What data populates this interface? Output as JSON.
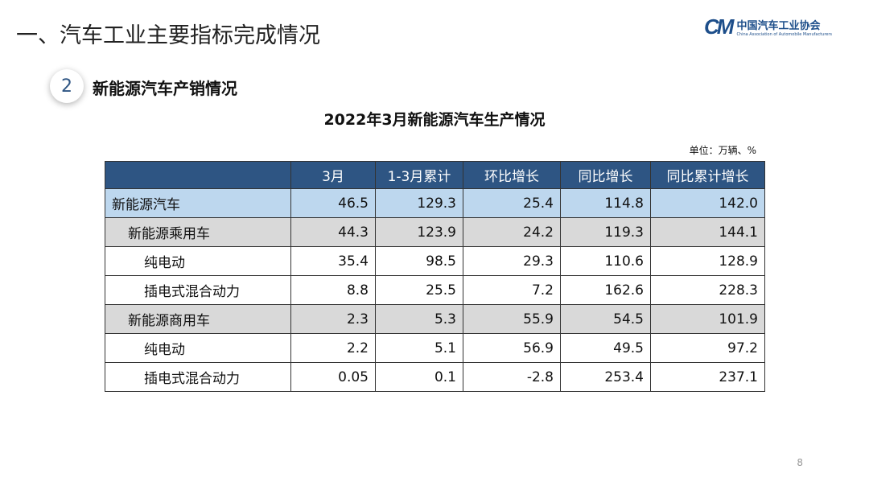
{
  "title": "一、汽车工业主要指标完成情况",
  "logo": {
    "mark": "CM",
    "cn": "中国汽车工业协会",
    "en": "China Association of Automobile Manufacturers"
  },
  "section": {
    "number": "2",
    "title": "新能源汽车产销情况"
  },
  "table_title": "2022年3月新能源汽车生产情况",
  "unit": "单位：万辆、%",
  "headers": [
    "",
    "3月",
    "1-3月累计",
    "环比增长",
    "同比增长",
    "同比累计增长"
  ],
  "rows": [
    {
      "name": "新能源汽车",
      "level": 0,
      "values": [
        "46.5",
        "129.3",
        "25.4",
        "114.8",
        "142.0"
      ]
    },
    {
      "name": "新能源乘用车",
      "level": 1,
      "values": [
        "44.3",
        "123.9",
        "24.2",
        "119.3",
        "144.1"
      ]
    },
    {
      "name": "纯电动",
      "level": 2,
      "values": [
        "35.4",
        "98.5",
        "29.3",
        "110.6",
        "128.9"
      ]
    },
    {
      "name": "插电式混合动力",
      "level": 2,
      "values": [
        "8.8",
        "25.5",
        "7.2",
        "162.6",
        "228.3"
      ]
    },
    {
      "name": "新能源商用车",
      "level": 1,
      "values": [
        "2.3",
        "5.3",
        "55.9",
        "54.5",
        "101.9"
      ]
    },
    {
      "name": "纯电动",
      "level": 2,
      "values": [
        "2.2",
        "5.1",
        "56.9",
        "49.5",
        "97.2"
      ]
    },
    {
      "name": "插电式混合动力",
      "level": 2,
      "values": [
        "0.05",
        "0.1",
        "-2.8",
        "253.4",
        "237.1"
      ]
    }
  ],
  "page_number": "8"
}
